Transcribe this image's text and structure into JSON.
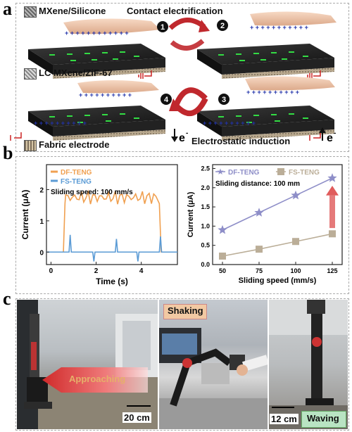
{
  "panel_a": {
    "letter": "a",
    "labels": {
      "mxene_silicone": "MXene/Silicone",
      "contact_electrification": "Contact electrification",
      "lc_mxene": "LC MXene/ZiF-67",
      "fabric_electrode": "Fabric electrode",
      "electrostatic_induction": "Electrostatic induction"
    },
    "steps": [
      "1",
      "2",
      "3",
      "4"
    ],
    "electron": "e",
    "electron_sup": "-"
  },
  "panel_b": {
    "letter": "b",
    "chart_data": [
      {
        "type": "line",
        "series": [
          {
            "name": "DF-TENG",
            "color": "#F0A050"
          },
          {
            "name": "FS-TENG",
            "color": "#5B9BD5"
          }
        ],
        "annotation": "Sliding speed: 100 mm/s",
        "xlabel": "Time (s)",
        "ylabel": "Current (μA)",
        "xticks": [
          "0",
          "2",
          "4"
        ],
        "yticks": [
          "0",
          "1",
          "2"
        ],
        "xlim": [
          -0.2,
          5.6
        ],
        "ylim": [
          -0.4,
          2.8
        ]
      },
      {
        "type": "line",
        "categories": [
          "50",
          "75",
          "100",
          "125"
        ],
        "series": [
          {
            "name": "DF-TENG",
            "color": "#8E8EC8",
            "values": [
              0.9,
              1.35,
              1.8,
              2.25
            ]
          },
          {
            "name": "FS-TENG",
            "color": "#BBAE98",
            "values": [
              0.22,
              0.4,
              0.6,
              0.8
            ]
          }
        ],
        "annotation": "Sliding distance: 100 mm",
        "xlabel": "Sliding speed (mm/s)",
        "ylabel": "Current (μA)",
        "yticks": [
          "0.0",
          "0.5",
          "1.0",
          "1.5",
          "2.0",
          "2.5"
        ],
        "ylim": [
          0,
          2.6
        ]
      }
    ]
  },
  "panel_c": {
    "letter": "c",
    "labels": {
      "approaching": "Approaching",
      "shaking": "Shaking",
      "waving": "Waving",
      "scale_left": "20 cm",
      "scale_right": "12 cm"
    }
  }
}
